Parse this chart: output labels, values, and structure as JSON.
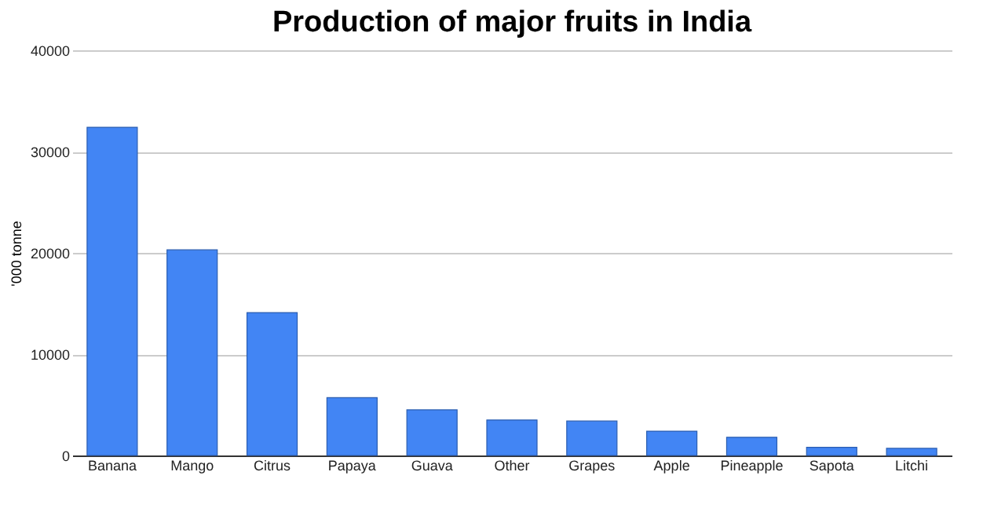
{
  "chart_data": {
    "type": "bar",
    "title": "Production of major fruits in India",
    "ylabel": "'000 tonne",
    "categories": [
      "Banana",
      "Mango",
      "Citrus",
      "Papaya",
      "Guava",
      "Other",
      "Grapes",
      "Apple",
      "Pineapple",
      "Sapota",
      "Litchi"
    ],
    "values": [
      32400,
      20300,
      14100,
      5700,
      4500,
      3500,
      3400,
      2400,
      1800,
      800,
      700
    ],
    "color": "#4285f4",
    "ylim": [
      0,
      40000
    ],
    "yticks": [
      0,
      10000,
      20000,
      30000,
      40000
    ],
    "grid": "y"
  }
}
